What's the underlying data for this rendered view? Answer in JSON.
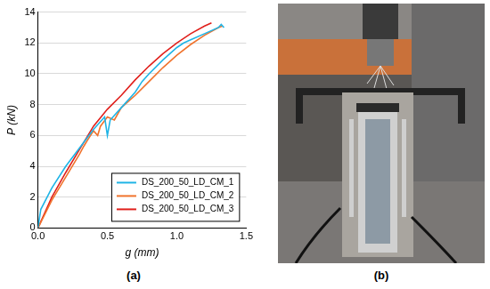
{
  "chart_data": {
    "type": "line",
    "x_label": "g (mm)",
    "y_label": "P (kN)",
    "xlim": [
      0,
      1.5
    ],
    "xticks": [
      {
        "value": 0,
        "label": "0.0"
      },
      0.5,
      {
        "value": 1,
        "label": "1.0"
      },
      1.5
    ],
    "ylim": [
      0,
      14
    ],
    "yticks": [
      0,
      2,
      4,
      6,
      8,
      10,
      12,
      14
    ],
    "grid": "y",
    "legend": "lower right",
    "series": [
      {
        "name": "DS_200_50_LD_CM_1",
        "color": "#1fb4e6",
        "x": [
          0,
          0.02,
          0.1,
          0.2,
          0.3,
          0.4,
          0.48,
          0.5,
          0.52,
          0.6,
          0.7,
          0.75,
          0.8,
          0.9,
          1.0,
          1.05,
          1.1,
          1.2,
          1.3,
          1.32,
          1.34
        ],
        "values": [
          0,
          1.2,
          2.6,
          4.0,
          5.2,
          6.4,
          7.2,
          6.0,
          7.0,
          7.8,
          8.8,
          9.5,
          10.0,
          10.9,
          11.7,
          12.0,
          12.2,
          12.6,
          13.0,
          13.2,
          13.0
        ]
      },
      {
        "name": "DS_200_50_LD_CM_2",
        "color": "#f0732d",
        "x": [
          0,
          0.1,
          0.2,
          0.3,
          0.33,
          0.35,
          0.4,
          0.43,
          0.45,
          0.5,
          0.55,
          0.6,
          0.7,
          0.8,
          0.9,
          1.0,
          1.1,
          1.2,
          1.3,
          1.33
        ],
        "values": [
          0,
          1.8,
          3.3,
          4.8,
          5.3,
          5.6,
          6.3,
          6.0,
          6.6,
          7.2,
          7.0,
          7.8,
          8.6,
          9.5,
          10.4,
          11.2,
          11.9,
          12.5,
          13.0,
          13.1
        ]
      },
      {
        "name": "DS_200_50_LD_CM_3",
        "color": "#e0201c",
        "x": [
          0,
          0.1,
          0.2,
          0.3,
          0.4,
          0.5,
          0.6,
          0.7,
          0.8,
          0.9,
          1.0,
          1.1,
          1.2,
          1.25
        ],
        "values": [
          0,
          2.0,
          3.6,
          5.1,
          6.6,
          7.7,
          8.6,
          9.6,
          10.5,
          11.3,
          12.0,
          12.6,
          13.1,
          13.3
        ]
      }
    ]
  },
  "panels": [
    {
      "label": "(a)"
    },
    {
      "label": "(b)"
    }
  ]
}
